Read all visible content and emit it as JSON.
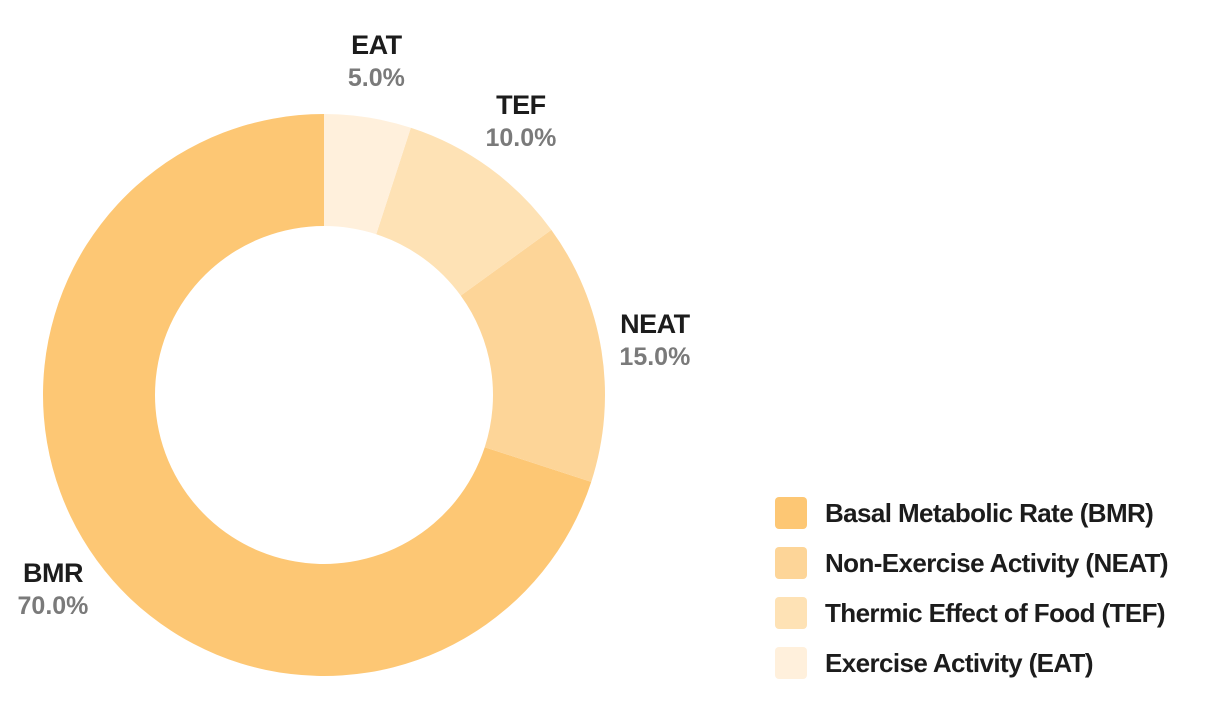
{
  "chart_data": {
    "type": "pie",
    "variant": "donut",
    "categories": [
      "BMR",
      "NEAT",
      "TEF",
      "EAT"
    ],
    "values": [
      70.0,
      15.0,
      10.0,
      5.0
    ],
    "value_labels": [
      "70.0%",
      "15.0%",
      "10.0%",
      "5.0%"
    ],
    "colors": [
      "#fdc774",
      "#fdd598",
      "#fee2b5",
      "#fff0dc"
    ],
    "legend": {
      "placement": "bottom-right",
      "entries": [
        "Basal Metabolic Rate (BMR)",
        "Non-Exercise Activity (NEAT)",
        "Thermic Effect of Food (TEF)",
        "Exercise Activity (EAT)"
      ]
    }
  }
}
